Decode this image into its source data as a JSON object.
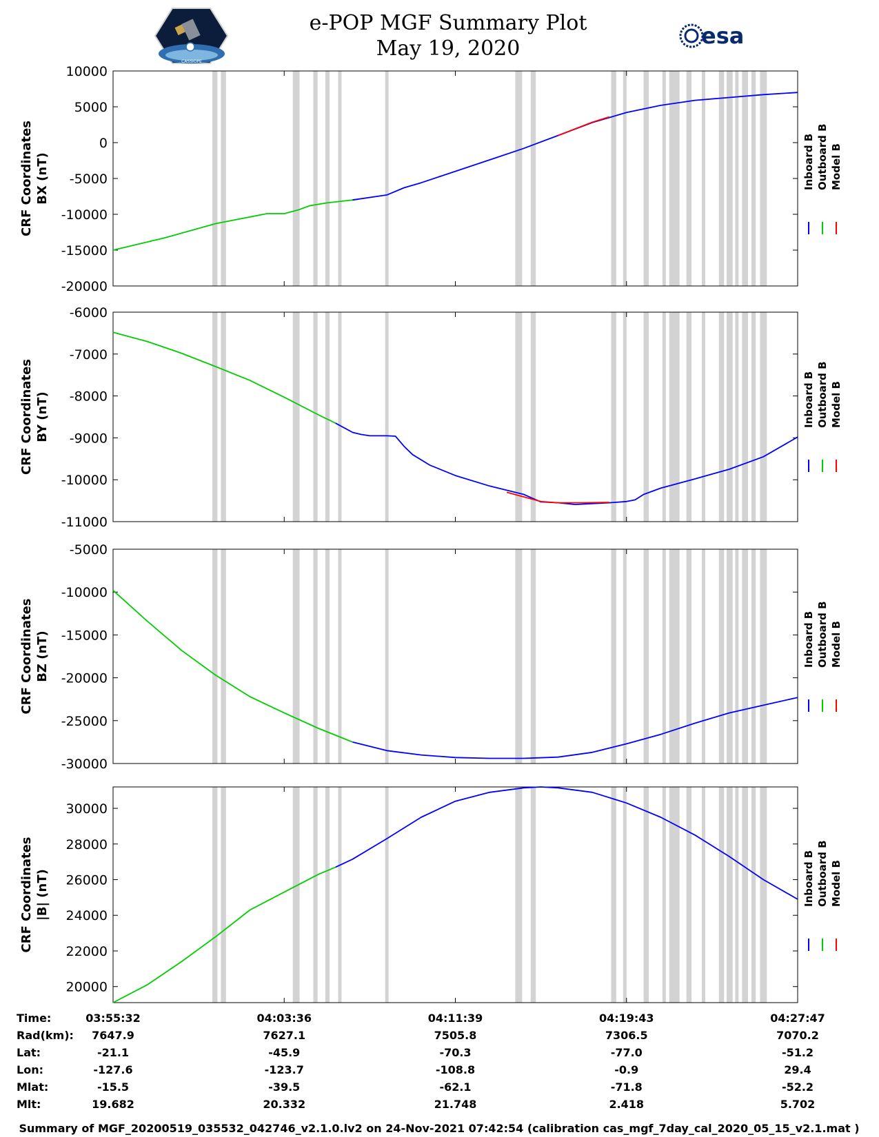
{
  "title": "e-POP MGF Summary Plot",
  "date": "May 19, 2020",
  "logos": {
    "left": "CASSIOPE",
    "right": "esa"
  },
  "colors": {
    "inboard": "#0000ff",
    "outboard": "#00cc00",
    "model": "#ff0000",
    "gap": "#d3d3d3"
  },
  "chart_data": [
    {
      "type": "line",
      "ylabel": [
        "CRF Coordinates",
        "BX (nT)"
      ],
      "ylim": [
        -20000,
        10000
      ],
      "yticks": [
        10000,
        5000,
        0,
        -5000,
        -10000,
        -15000,
        -20000
      ],
      "legend": [
        "Inboard B",
        "Outboard B",
        "Model B"
      ],
      "series": [
        {
          "name": "Outboard B",
          "x": [
            0,
            3,
            6,
            9,
            10,
            10.8,
            11.5,
            12.5,
            14,
            14.3
          ],
          "y": [
            -15000,
            -13300,
            -11300,
            -9900,
            -9900,
            -9400,
            -8800,
            -8400,
            -8000,
            -7900
          ]
        },
        {
          "name": "Inboard B",
          "x": [
            14,
            16,
            17,
            18,
            20,
            22,
            24,
            26,
            28,
            30,
            32,
            34,
            36,
            38,
            40
          ],
          "y": [
            -8000,
            -7300,
            -6300,
            -5600,
            -4000,
            -2400,
            -800,
            1000,
            2800,
            4200,
            5200,
            5900,
            6300,
            6700,
            7000
          ]
        },
        {
          "name": "Model B",
          "x": [
            26,
            28,
            29
          ],
          "y": [
            1000,
            2850,
            3600
          ]
        }
      ]
    },
    {
      "type": "line",
      "ylabel": [
        "CRF Coordinates",
        "BY (nT)"
      ],
      "ylim": [
        -11000,
        -6000
      ],
      "yticks": [
        -6000,
        -7000,
        -8000,
        -9000,
        -10000,
        -11000
      ],
      "legend": [
        "Inboard B",
        "Outboard B",
        "Model B"
      ],
      "series": [
        {
          "name": "Outboard B",
          "x": [
            0,
            2,
            4,
            6,
            8,
            10,
            12,
            13
          ],
          "y": [
            -6480,
            -6700,
            -6980,
            -7300,
            -7630,
            -8030,
            -8450,
            -8650
          ]
        },
        {
          "name": "Inboard B",
          "x": [
            13,
            14,
            14.5,
            15,
            16,
            16.5,
            17,
            17.5,
            18.5,
            20,
            22,
            24,
            25,
            26,
            27,
            28,
            29,
            30,
            30.5,
            31,
            32,
            34,
            36,
            38,
            40
          ],
          "y": [
            -8650,
            -8870,
            -8920,
            -8950,
            -8950,
            -8960,
            -9200,
            -9400,
            -9650,
            -9900,
            -10150,
            -10350,
            -10530,
            -10550,
            -10590,
            -10570,
            -10550,
            -10520,
            -10480,
            -10350,
            -10200,
            -9980,
            -9750,
            -9450,
            -8980
          ]
        },
        {
          "name": "Model B",
          "x": [
            23,
            25,
            26,
            27.5,
            29
          ],
          "y": [
            -10300,
            -10520,
            -10550,
            -10550,
            -10540
          ]
        }
      ]
    },
    {
      "type": "line",
      "ylabel": [
        "CRF Coordinates",
        "BZ (nT)"
      ],
      "ylim": [
        -30000,
        -5000
      ],
      "yticks": [
        -5000,
        -10000,
        -15000,
        -20000,
        -25000,
        -30000
      ],
      "legend": [
        "Inboard B",
        "Outboard B",
        "Model B"
      ],
      "series": [
        {
          "name": "Outboard B",
          "x": [
            0,
            2,
            4,
            6,
            8,
            10,
            12,
            14
          ],
          "y": [
            -9800,
            -13400,
            -16800,
            -19700,
            -22200,
            -24100,
            -25900,
            -27500
          ]
        },
        {
          "name": "Inboard B",
          "x": [
            14,
            16,
            18,
            20,
            22,
            24,
            26,
            28,
            30,
            32,
            34,
            36,
            38,
            40
          ],
          "y": [
            -27500,
            -28500,
            -29000,
            -29300,
            -29400,
            -29400,
            -29250,
            -28700,
            -27700,
            -26600,
            -25300,
            -24100,
            -23200,
            -22300
          ]
        }
      ]
    },
    {
      "type": "line",
      "ylabel": [
        "CRF Coordinates",
        "|B| (nT)"
      ],
      "ylim": [
        19100,
        31200
      ],
      "yticks": [
        30000,
        28000,
        26000,
        24000,
        22000,
        20000
      ],
      "legend": [
        "Inboard B",
        "Outboard B",
        "Model B"
      ],
      "series": [
        {
          "name": "Outboard B",
          "x": [
            0,
            2,
            4,
            6,
            8,
            10,
            12,
            13
          ],
          "y": [
            19100,
            20100,
            21400,
            22800,
            24300,
            25300,
            26300,
            26700
          ]
        },
        {
          "name": "Inboard B",
          "x": [
            13,
            14,
            16,
            18,
            20,
            22,
            24,
            25,
            26,
            28,
            30,
            32,
            34,
            36,
            38,
            40
          ],
          "y": [
            26700,
            27150,
            28300,
            29500,
            30400,
            30900,
            31150,
            31200,
            31150,
            30900,
            30300,
            29500,
            28500,
            27300,
            26000,
            24900
          ]
        }
      ]
    }
  ],
  "gap_bands": [
    [
      5.8,
      6.1
    ],
    [
      6.3,
      6.6
    ],
    [
      10.5,
      10.9
    ],
    [
      11.7,
      11.95
    ],
    [
      12.4,
      12.65
    ],
    [
      13.15,
      13.35
    ],
    [
      15.9,
      16.1
    ],
    [
      23.5,
      23.9
    ],
    [
      24.4,
      24.7
    ],
    [
      29.1,
      29.4
    ],
    [
      29.8,
      30.0
    ],
    [
      31.0,
      31.3
    ],
    [
      32.1,
      32.3
    ],
    [
      32.5,
      33.1
    ],
    [
      33.5,
      33.8
    ],
    [
      34.4,
      34.6
    ],
    [
      35.4,
      35.7
    ],
    [
      35.85,
      36.2
    ],
    [
      36.35,
      36.55
    ],
    [
      36.75,
      37.1
    ],
    [
      37.3,
      37.55
    ],
    [
      37.8,
      38.2
    ]
  ],
  "x_range": [
    0,
    40
  ],
  "x_tick_positions": [
    0,
    10,
    20,
    30,
    40
  ],
  "info_table": {
    "labels": [
      "Time:",
      "Rad(km):",
      "Lat:",
      "Lon:",
      "Mlat:",
      "Mlt:"
    ],
    "columns": [
      [
        "03:55:32",
        "7647.9",
        "-21.1",
        "-127.6",
        "-15.5",
        "19.682"
      ],
      [
        "04:03:36",
        "7627.1",
        "-45.9",
        "-123.7",
        "-39.5",
        "20.332"
      ],
      [
        "04:11:39",
        "7505.8",
        "-70.3",
        "-108.8",
        "-62.1",
        "21.748"
      ],
      [
        "04:19:43",
        "7306.5",
        "-77.0",
        "-0.9",
        "-71.8",
        "2.418"
      ],
      [
        "04:27:47",
        "7070.2",
        "-51.2",
        "29.4",
        "-52.2",
        "5.702"
      ]
    ]
  },
  "footer": "Summary of MGF_20200519_035532_042746_v2.1.0.lv2 on 24-Nov-2021 07:42:54 (calibration cas_mgf_7day_cal_2020_05_15_v2.1.mat )"
}
